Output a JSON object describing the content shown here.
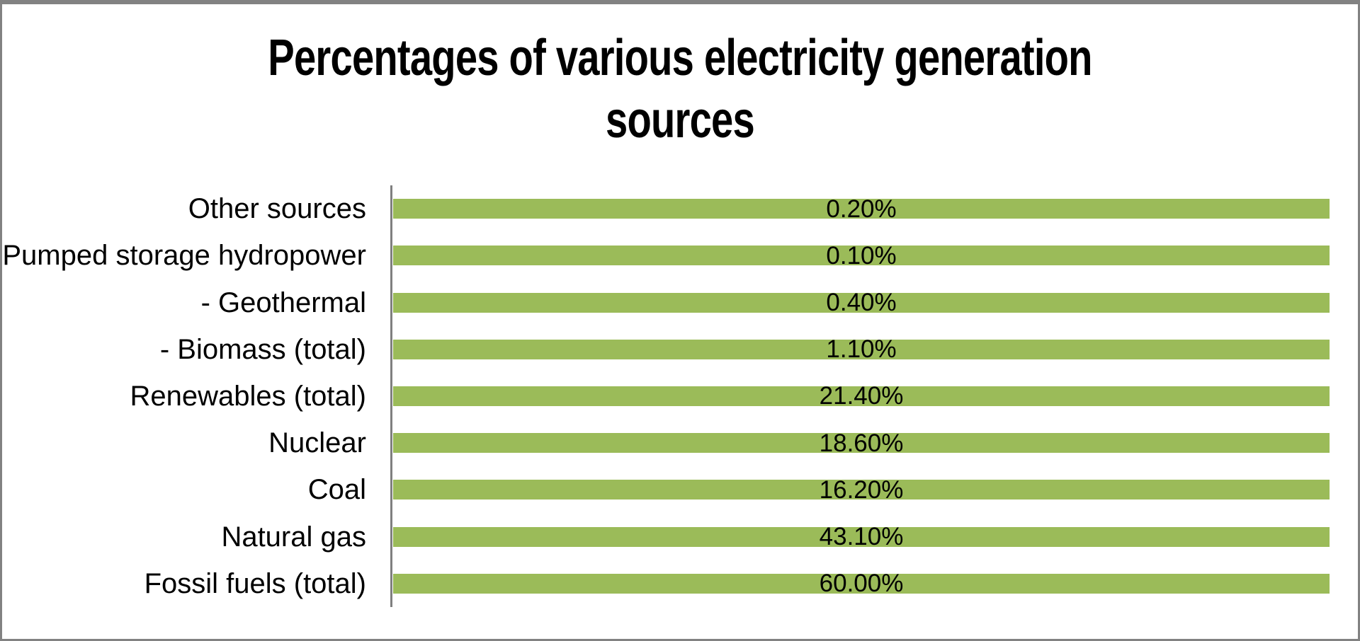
{
  "chart_data": {
    "type": "bar",
    "orientation": "horizontal",
    "title": "Percentages of various electricity generation sources",
    "title_lines": [
      "Percentages of various electricity generation",
      "sources"
    ],
    "categories": [
      "Other sources",
      "Pumped storage hydropower",
      "- Geothermal",
      "- Biomass (total)",
      "Renewables (total)",
      "Nuclear",
      "Coal",
      "Natural gas",
      "Fossil fuels (total)"
    ],
    "values": [
      0.2,
      0.1,
      0.4,
      1.1,
      21.4,
      18.6,
      16.2,
      43.1,
      60.0
    ],
    "data_labels": [
      "0.20%",
      "0.10%",
      "0.40%",
      "1.10%",
      "21.40%",
      "18.60%",
      "16.20%",
      "43.10%",
      "60.00%"
    ],
    "category_order": "top-to-bottom as listed",
    "value_label_position": "centered-inside-bar",
    "bars_rendered_equal_full_length": true,
    "xlabel": "",
    "ylabel": "",
    "legend": "none",
    "grid": "off",
    "axis_ticks": "none",
    "colors": {
      "bar_fill": "#9BBB59",
      "axis_line": "#7F7F7F",
      "frame_border": "#828282",
      "text": "#000000",
      "background": "#FFFFFF"
    }
  }
}
